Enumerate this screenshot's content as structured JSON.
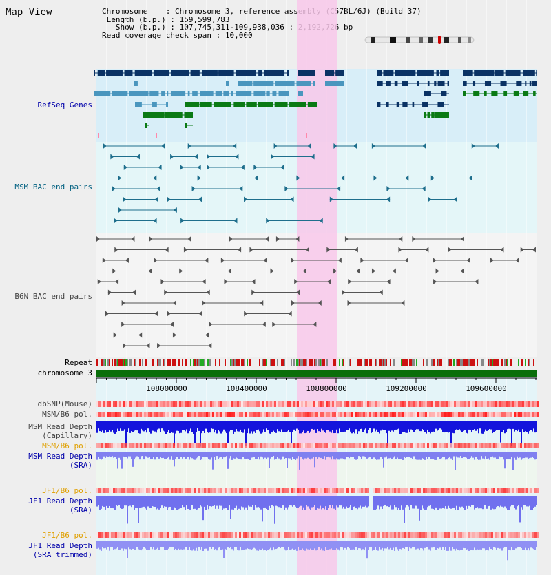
{
  "title": "Map View",
  "info": {
    "chromosome_key": "Chromosome",
    "chromosome_val": "Chromosome 3, reference assembly (C57BL/6J) (Build 37)",
    "length_key": "Length (b.p.)",
    "length_val": "159,599,783",
    "show_key": "Show (b.p.)",
    "show_val": "107,745,311-109,938,036 : 2,192,726 bp",
    "span_key": "Read coverage check span",
    "span_val": "10,000"
  },
  "tracks": {
    "refseq": "RefSeq Genes",
    "msm_bac": "MSM BAC end pairs",
    "b6n_bac": "B6N BAC end pairs",
    "repeat": "Repeat",
    "chromosome": "chromosome 3",
    "dbsnp": "dbSNP(Mouse)",
    "msm_b6_pol": "MSM/B6 pol.",
    "msm_depth_cap_1": "MSM Read Depth",
    "msm_depth_cap_2": "(Capillary)",
    "msm_b6_pol_2": "MSM/B6 pol.",
    "msm_depth_sra_1": "MSM Read Depth",
    "msm_depth_sra_2": "(SRA)",
    "jf1_b6_pol": "JF1/B6 pol.",
    "jf1_depth_1": "JF1 Read Depth",
    "jf1_depth_2": "(SRA)",
    "jf1_b6_pol_2": "JF1/B6 pol.",
    "jf1_trim_1": "JF1 Read Depth",
    "jf1_trim_2": "(SRA trimmed)"
  },
  "ruler": {
    "ticks": [
      "108000000",
      "108400000",
      "108800000",
      "109200000",
      "109600000"
    ]
  },
  "colors": {
    "refseq_dark": "#0a3264",
    "refseq_mid": "#4a96be",
    "refseq_green": "#0a7a14",
    "bac_msm": "#1e6e8c",
    "bac_b6n": "#555555",
    "highlight": "#f8c8ea",
    "chrom": "#0a6e0a",
    "label_blue": "#0000aa",
    "label_orange": "#e0a000",
    "label_teal": "#006080"
  }
}
